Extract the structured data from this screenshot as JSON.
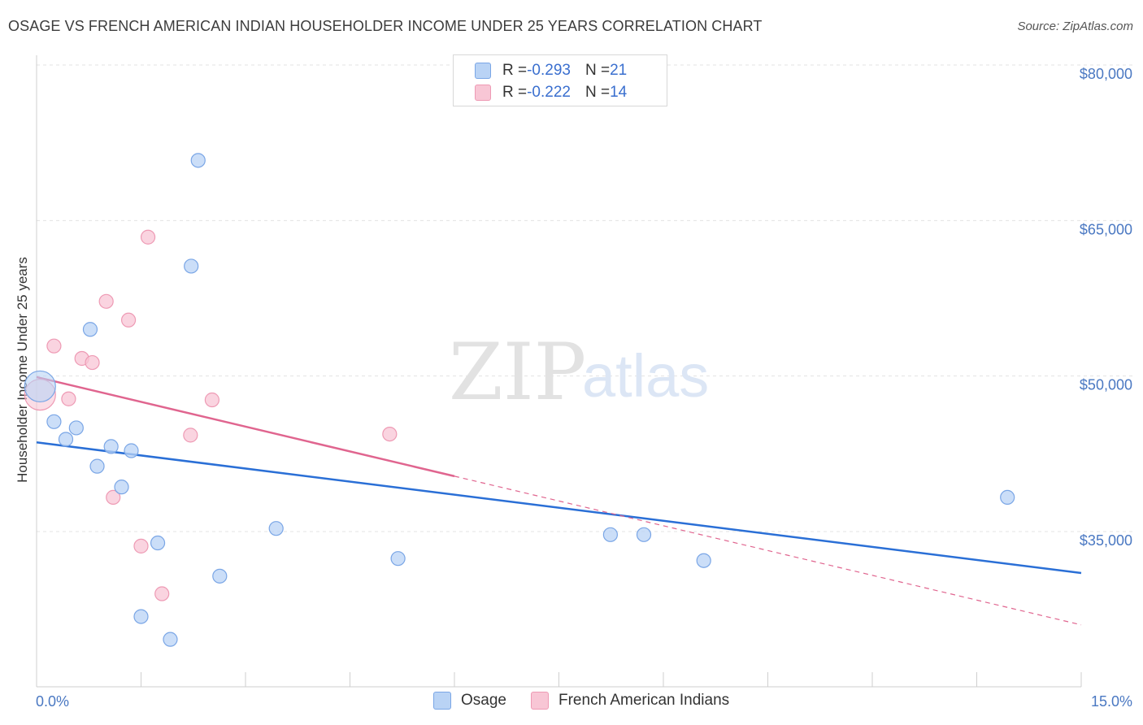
{
  "header": {
    "title": "OSAGE VS FRENCH AMERICAN INDIAN HOUSEHOLDER INCOME UNDER 25 YEARS CORRELATION CHART",
    "source": "Source: ZipAtlas.com"
  },
  "watermark": {
    "zip": "ZIP",
    "atlas": "atlas"
  },
  "legend": {
    "rows": [
      {
        "r_label": "R = ",
        "r_value": "-0.293",
        "n_label": "N = ",
        "n_value": "21"
      },
      {
        "r_label": "R = ",
        "r_value": "-0.222",
        "n_label": "N = ",
        "n_value": "14"
      }
    ]
  },
  "colors": {
    "osage_fill": "#b9d3f5",
    "osage_stroke": "#7aa6e6",
    "osage_line": "#2a6fd6",
    "french_fill": "#f8c6d5",
    "french_stroke": "#ee9ab4",
    "french_line": "#e0658f",
    "tick_text": "#4a78c2"
  },
  "chart_data": {
    "type": "scatter",
    "title": "OSAGE VS FRENCH AMERICAN INDIAN HOUSEHOLDER INCOME UNDER 25 YEARS CORRELATION CHART",
    "xlabel": "",
    "ylabel": "Householder Income Under 25 years",
    "xlim": [
      0,
      15
    ],
    "ylim": [
      20000,
      82000
    ],
    "x_tick_labels": [
      {
        "value": 0,
        "label": "0.0%"
      },
      {
        "value": 15,
        "label": "15.0%"
      }
    ],
    "y_ticks": [
      {
        "value": 35000,
        "label": "$35,000"
      },
      {
        "value": 50000,
        "label": "$50,000"
      },
      {
        "value": 65000,
        "label": "$65,000"
      },
      {
        "value": 80000,
        "label": "$80,000"
      }
    ],
    "series": [
      {
        "name": "Osage",
        "points": [
          {
            "x": 0.05,
            "y": 49000,
            "big": true
          },
          {
            "x": 0.25,
            "y": 45600
          },
          {
            "x": 0.42,
            "y": 43900
          },
          {
            "x": 0.57,
            "y": 45000
          },
          {
            "x": 0.77,
            "y": 54500
          },
          {
            "x": 0.87,
            "y": 41300
          },
          {
            "x": 1.07,
            "y": 43200
          },
          {
            "x": 1.22,
            "y": 39300
          },
          {
            "x": 1.36,
            "y": 42800
          },
          {
            "x": 1.5,
            "y": 26800
          },
          {
            "x": 1.74,
            "y": 33900
          },
          {
            "x": 1.92,
            "y": 24600
          },
          {
            "x": 2.22,
            "y": 60600
          },
          {
            "x": 2.32,
            "y": 70800
          },
          {
            "x": 2.63,
            "y": 30700
          },
          {
            "x": 3.44,
            "y": 35300
          },
          {
            "x": 5.19,
            "y": 32400
          },
          {
            "x": 8.24,
            "y": 34700
          },
          {
            "x": 8.72,
            "y": 34700
          },
          {
            "x": 9.58,
            "y": 32200
          },
          {
            "x": 13.94,
            "y": 38300
          }
        ],
        "trend": {
          "x0": 0,
          "y0": 43600,
          "x1": 15,
          "y1": 31000,
          "dashed_from": null
        }
      },
      {
        "name": "French American Indians",
        "points": [
          {
            "x": 0.05,
            "y": 48200,
            "big": true
          },
          {
            "x": 0.25,
            "y": 52900
          },
          {
            "x": 0.46,
            "y": 47800
          },
          {
            "x": 0.65,
            "y": 51700
          },
          {
            "x": 0.8,
            "y": 51300
          },
          {
            "x": 1.0,
            "y": 57200
          },
          {
            "x": 1.1,
            "y": 38300
          },
          {
            "x": 1.32,
            "y": 55400
          },
          {
            "x": 1.5,
            "y": 33600
          },
          {
            "x": 1.6,
            "y": 63400
          },
          {
            "x": 1.8,
            "y": 29000
          },
          {
            "x": 2.21,
            "y": 44300
          },
          {
            "x": 2.52,
            "y": 47700
          },
          {
            "x": 5.07,
            "y": 44400
          }
        ],
        "trend": {
          "x0": 0,
          "y0": 49900,
          "x1": 15,
          "y1": 26000,
          "dashed_from": 6.0
        }
      }
    ]
  },
  "bottom_legend": {
    "items": [
      {
        "label": "Osage"
      },
      {
        "label": "French American Indians"
      }
    ]
  }
}
